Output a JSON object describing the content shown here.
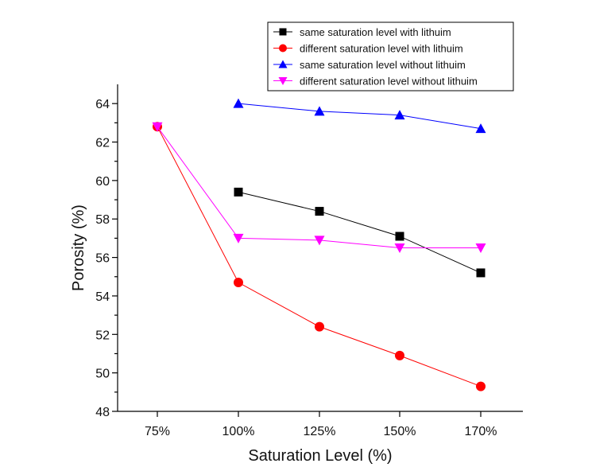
{
  "chart_data": {
    "type": "line",
    "title": "",
    "xlabel": "Saturation Level (%)",
    "ylabel": "Porosity (%)",
    "categories": [
      "75%",
      "100%",
      "125%",
      "150%",
      "170%"
    ],
    "ylim": [
      48,
      65
    ],
    "yticks": [
      48,
      50,
      52,
      54,
      56,
      58,
      60,
      62,
      64
    ],
    "grid": false,
    "legend_position": "top-right",
    "series": [
      {
        "name": "same saturation level with lithuim",
        "color": "#000000",
        "marker": "square",
        "values": [
          null,
          59.4,
          58.4,
          57.1,
          55.2
        ]
      },
      {
        "name": "different saturation level with lithuim",
        "color": "#ff0000",
        "marker": "circle",
        "values": [
          62.8,
          54.7,
          52.4,
          50.9,
          49.3
        ]
      },
      {
        "name": "same saturation level without lithuim",
        "color": "#0000ff",
        "marker": "triangle-up",
        "values": [
          null,
          64.0,
          63.6,
          63.4,
          62.7
        ]
      },
      {
        "name": "different saturation level without lithuim",
        "color": "#ff00ff",
        "marker": "triangle-down",
        "values": [
          62.8,
          57.0,
          56.9,
          56.5,
          56.5
        ]
      }
    ]
  }
}
